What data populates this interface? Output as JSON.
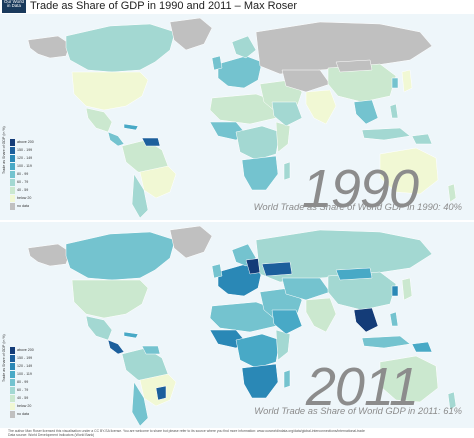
{
  "header": {
    "logo_lines": [
      "Our World",
      "in Data"
    ],
    "title": "Trade as Share of GDP in 1990 and 2011 – Max Roser"
  },
  "legend": {
    "title": "Trade as Share of GDP (in %)",
    "items": [
      {
        "label": "above 200",
        "color": "#143c78"
      },
      {
        "label": "150 - 199",
        "color": "#1c5f9c"
      },
      {
        "label": "120 - 149",
        "color": "#2a88b6"
      },
      {
        "label": "100 - 119",
        "color": "#48a9c6"
      },
      {
        "label": "80 - 99",
        "color": "#74c3cf"
      },
      {
        "label": "60 - 79",
        "color": "#a3d8d2"
      },
      {
        "label": "40 - 59",
        "color": "#cbe8cf"
      },
      {
        "label": "below 20",
        "color": "#f1f8d4"
      },
      {
        "label": "no data",
        "color": "#c0c0c0"
      }
    ]
  },
  "maps": [
    {
      "year": "1990",
      "caption": "World Trade as Share of World GDP in 1990: 40%"
    },
    {
      "year": "2011",
      "caption": "World Trade as Share of World GDP in 2011: 61%"
    }
  ],
  "footer": {
    "line1": "The author Max Roser licensed this visualisation under a CC BY-SA license. You are welcome to share but please refer to its source where you find more information: www.ourworldindata.org/data/global-interconnections/international-trade",
    "line2": "Data source: World Development Indicators (World Bank)"
  },
  "colors": {
    "ocean": "#eef6fa",
    "no_data": "#c0c0c0",
    "low": "#f1f8d4",
    "mid": "#a3d8d2",
    "high": "#1c5f9c"
  }
}
